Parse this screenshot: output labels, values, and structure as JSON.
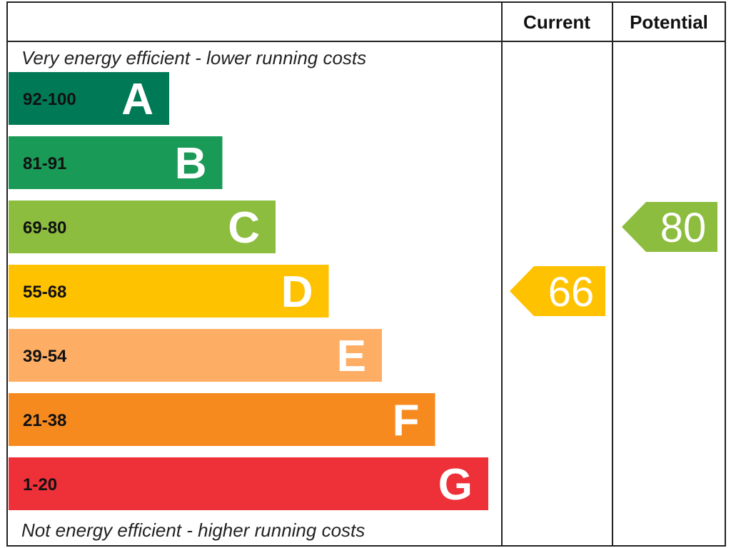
{
  "chart_data": {
    "type": "bar",
    "header": {
      "current": "Current",
      "potential": "Potential"
    },
    "top_caption": "Very energy efficient - lower running costs",
    "bottom_caption": "Not energy efficient - higher running costs",
    "bands": [
      {
        "letter": "A",
        "range": "92-100",
        "color": "#007a56"
      },
      {
        "letter": "B",
        "range": "81-91",
        "color": "#1a9a57"
      },
      {
        "letter": "C",
        "range": "69-80",
        "color": "#8cbd3f"
      },
      {
        "letter": "D",
        "range": "55-68",
        "color": "#ffc200"
      },
      {
        "letter": "E",
        "range": "39-54",
        "color": "#fdae64"
      },
      {
        "letter": "F",
        "range": "21-38",
        "color": "#f68a1f"
      },
      {
        "letter": "G",
        "range": "1-20",
        "color": "#ee3039"
      }
    ],
    "current": {
      "value": "66",
      "band": "D",
      "color": "#ffc200"
    },
    "potential": {
      "value": "80",
      "band": "C",
      "color": "#8cbd3f"
    }
  }
}
